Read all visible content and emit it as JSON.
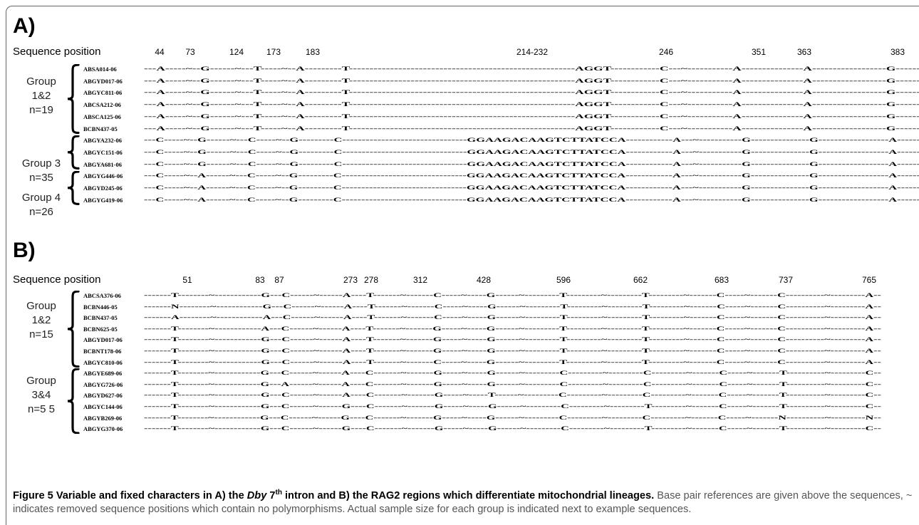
{
  "figure": {
    "panels": [
      {
        "id": "A",
        "label": "A)",
        "axis_label": "Sequence position",
        "positions": [
          "44",
          "73",
          "124",
          "173",
          "183",
          "214-232",
          "246",
          "351",
          "363",
          "383"
        ],
        "groups": [
          {
            "label": "Group\n1&2\nn=19",
            "samples": [
              "ABSA014-06",
              "ABGYD017-06",
              "ABGYC811-06",
              "ABCSA212-06",
              "ABSCA125-06",
              "BCBN437-05"
            ]
          },
          {
            "label": "Group 3\nn=35",
            "samples": [
              "ABGYA232-06",
              "ABGYC151-06",
              "ABGYA681-06"
            ]
          },
          {
            "label": "Group 4\nn=26",
            "samples": [
              "ABGYG446-06",
              "ABGYD245-06",
              "ABGYG419-06"
            ]
          }
        ],
        "sequences": [
          "---A-----~--G------~---T-----~--A---------T-------------------------------------------------------AGGT------------C---~-----------A---------------A------------------G------",
          "---A-----~--G------~---T-----~--A---------T-------------------------------------------------------AGGT------------C---~-----------A---------------A------------------G------",
          "---A-----~--G------~---T-----~--A---------T-------------------------------------------------------AGGT------------C---~-----------A---------------A------------------G------",
          "---A-----~--G------~---T-----~--A---------T-------------------------------------------------------AGGT------------C---~-----------A---------------A------------------G------",
          "---A-----~--G------~---T-----~--A---------T-------------------------------------------------------AGGT------------C---~-----------A---------------A------------------G------",
          "---A-----~--G------~---T-----~--A---------T-------------------------------------------------------AGGT------------C---~-----------A---------------A------------------G------",
          "---C-----~--G------~---C-----~--G---------C--------------------------------GGAAGACAAGTCTTATCCA------------A---~-----------G---------------G------------------A------",
          "---C-----~--G------~---C-----~--G---------C--------------------------------GGAAGACAAGTCTTATCCA------------A---~-----------G---------------G------------------A------",
          "---C-----~--G------~---C-----~--G---------C--------------------------------GGAAGACAAGTCTTATCCA------------A---~-----------G---------------G------------------A------",
          "---C-----~--A------~---C-----~--G---------C--------------------------------GGAAGACAAGTCTTATCCA------------A---~-----------G---------------G------------------A------",
          "---C-----~--A------~---C-----~--G---------C--------------------------------GGAAGACAAGTCTTATCCA------------A---~-----------G---------------G------------------A------",
          "---C-----~--A------~---C-----~--G---------C--------------------------------GGAAGACAAGTCTTATCCA------------A---~-----------G---------------G------------------A------"
        ]
      },
      {
        "id": "B",
        "label": "B)",
        "axis_label": "Sequence position",
        "positions": [
          "51",
          "83",
          "87",
          "273",
          "278",
          "312",
          "428",
          "596",
          "662",
          "683",
          "737",
          "765"
        ],
        "groups": [
          {
            "label": "Group\n1&2\nn=15",
            "samples": [
              "ABCSA376-06",
              "BCBN446-05",
              "BCBN437-05",
              "BCBN625-05",
              "ABGYD017-06",
              "BCBNT178-06",
              "ABGYC810-06"
            ]
          },
          {
            "label": "Group\n3&4\nn=5 5",
            "samples": [
              "ABGYE689-06",
              "ABGYG726-06",
              "ABGYD627-06",
              "ABGYC144-06",
              "ABGYB269-06",
              "ABGYG370-06"
            ]
          }
        ],
        "sequences": [
          "-------T--------~------------G---C------~------A----T-------~-------C-----~-----G------~---------T---------~---------T---------~-------C-----~-------C----------~---------A--",
          "-------N--------~------------G---C------~------A----T-------~-------C-----~-----G------~---------T---------~---------T---------~-------C-----~-------C----------~---------A--",
          "-------A--------~------------A---C------~------A----T-------~-------C-----~-----G------~---------T---------~---------T---------~-------C-----~-------C----------~---------A--",
          "-------T--------~------------A---C------~------A----T-------~-------G-----~-----G------~---------T---------~---------T---------~-------C-----~-------C----------~---------A--",
          "-------T--------~------------G---C------~------A----T-------~-------G-----~-----G------~---------T---------~---------T---------~-------C-----~-------C----------~---------A--",
          "-------T--------~------------G---C------~------A----T-------~-------G-----~-----G------~---------T---------~---------T---------~-------C-----~-------C----------~---------A--",
          "-------T--------~------------G---C------~------A----T-------~-------C-----~-----G------~---------T---------~---------T---------~-------C-----~-------C----------~---------A--",
          "-------T--------~------------G---C------~------A----C-------~-------G-----~-----G------~---------C---------~---------C---------~-------C-----~-------T----------~---------C--",
          "-------T--------~------------G---A------~------A----C-------~-------G-----~-----G------~---------C---------~---------C---------~-------C-----~-------T----------~---------C--",
          "-------T--------~------------G---C------~------A----C-------~-------G-----~-----T------~---------C---------~---------C---------~-------C-----~-------T----------~---------C--",
          "-------T--------~------------G---C------~------G----C-------~-------G-----~-----G------~---------C---------~---------T---------~-------C-----~-------T----------~---------C--",
          "-------T--------~------------G---C------~------G----C-------~-------G-----~-----G------~---------C---------~---------C---------~-------C-----~-------N----------~---------N--",
          "-------T--------~------------G---C------~------G----C-------~-------G-----~-----G------~---------C---------~---------T---------~-------C-----~-------T----------~---------C--"
        ]
      }
    ],
    "caption": {
      "title_before": "Figure 5 Variable and fixed characters in A) the ",
      "title_gene": "Dby",
      "title_num": " 7",
      "title_sup": "th",
      "title_after": " intron and B) the RAG2 regions which differentiate mitochondrial lineages.",
      "body": "Base pair references are given above the sequences, ~ indicates removed sequence positions which contain no polymorphisms. Actual sample size for each group is indicated next to example sequences."
    }
  }
}
